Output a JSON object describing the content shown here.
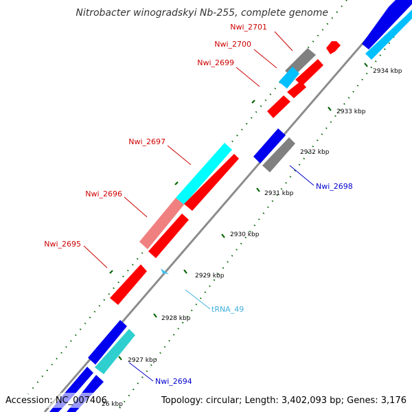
{
  "title": "Nitrobacter winogradskyi Nb-255, complete genome",
  "footer": {
    "accession": "Accession: NC_007406",
    "summary": "Topology: circular; Length: 3,402,093 bp; Genes: 3,176"
  },
  "colors": {
    "forward_cds": "#0000ee",
    "forward_cds_light": "#00bfff",
    "reverse_cds": "#ff0000",
    "reverse_cds_light": "#f08080",
    "cyan_feature": "#00ffff",
    "teal_feature": "#30cfcf",
    "gray_feature": "#808080",
    "trna": "#40c0f0",
    "backbone": "#8c8c8c",
    "tick": "#006400",
    "label_forward": "#0000cc",
    "label_reverse": "#cc0000",
    "label_trna": "#40b0e0"
  },
  "kbp_ticks": [
    {
      "label": "2934 kbp"
    },
    {
      "label": "2933 kbp"
    },
    {
      "label": "2932 kbp"
    },
    {
      "label": "2931 kbp"
    },
    {
      "label": "2930 kbp"
    },
    {
      "label": "2929 kbp"
    },
    {
      "label": "2928 kbp"
    },
    {
      "label": "2927 kbp"
    },
    {
      "label": "26 kbp"
    }
  ],
  "gene_labels": [
    {
      "label": "Nwi_2701",
      "kind": "reverse"
    },
    {
      "label": "Nwi_2700",
      "kind": "reverse"
    },
    {
      "label": "Nwi_2699",
      "kind": "reverse"
    },
    {
      "label": "Nwi_2697",
      "kind": "reverse"
    },
    {
      "label": "Nwi_2696",
      "kind": "reverse"
    },
    {
      "label": "Nwi_2695",
      "kind": "reverse"
    },
    {
      "label": "Nwi_2698",
      "kind": "forward"
    },
    {
      "label": "tRNA_49",
      "kind": "trna"
    },
    {
      "label": "Nwi_2694",
      "kind": "forward"
    }
  ]
}
